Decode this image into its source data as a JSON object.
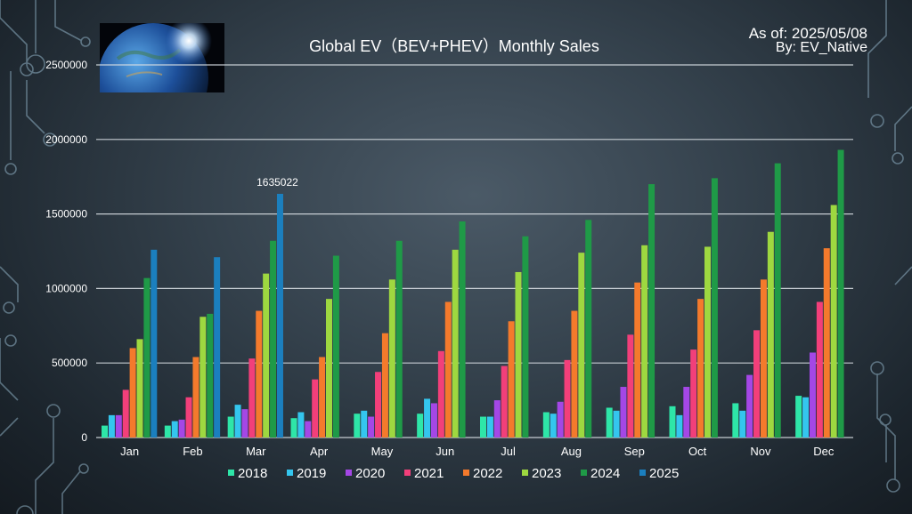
{
  "header": {
    "title": "Global EV（BEV+PHEV）Monthly Sales",
    "as_of": "As of: 2025/05/08",
    "by": "By: EV_Native"
  },
  "colors": {
    "2018": "#2ee6a8",
    "2019": "#34c6ee",
    "2020": "#a447e6",
    "2021": "#f23f7a",
    "2022": "#f47a2c",
    "2023": "#9ed840",
    "2024": "#1f9a47",
    "2025": "#1b7fbe"
  },
  "chart_data": {
    "type": "bar",
    "title": "Global EV（BEV+PHEV）Monthly Sales",
    "xlabel": "",
    "ylabel": "",
    "ylim": [
      0,
      2500000
    ],
    "yticks": [
      0,
      500000,
      1000000,
      1500000,
      2000000,
      2500000
    ],
    "ytick_labels": [
      "0",
      "500000",
      "1000000",
      "1500000",
      "2000000",
      "2500000"
    ],
    "grid": true,
    "legend_position": "bottom",
    "categories": [
      "Jan",
      "Feb",
      "Mar",
      "Apr",
      "May",
      "Jun",
      "Jul",
      "Aug",
      "Sep",
      "Oct",
      "Nov",
      "Dec"
    ],
    "series": [
      {
        "name": "2018",
        "values": [
          80000,
          80000,
          140000,
          130000,
          160000,
          160000,
          140000,
          170000,
          200000,
          210000,
          230000,
          280000
        ]
      },
      {
        "name": "2019",
        "values": [
          150000,
          110000,
          220000,
          170000,
          180000,
          260000,
          140000,
          160000,
          180000,
          150000,
          180000,
          270000
        ]
      },
      {
        "name": "2020",
        "values": [
          150000,
          120000,
          190000,
          110000,
          140000,
          230000,
          250000,
          240000,
          340000,
          340000,
          420000,
          570000
        ]
      },
      {
        "name": "2021",
        "values": [
          320000,
          270000,
          530000,
          390000,
          440000,
          580000,
          480000,
          520000,
          690000,
          590000,
          720000,
          910000
        ]
      },
      {
        "name": "2022",
        "values": [
          600000,
          540000,
          850000,
          540000,
          700000,
          910000,
          780000,
          850000,
          1040000,
          930000,
          1060000,
          1270000
        ]
      },
      {
        "name": "2023",
        "values": [
          660000,
          810000,
          1100000,
          930000,
          1060000,
          1260000,
          1110000,
          1240000,
          1290000,
          1280000,
          1380000,
          1560000
        ]
      },
      {
        "name": "2024",
        "values": [
          1070000,
          830000,
          1320000,
          1220000,
          1320000,
          1450000,
          1350000,
          1460000,
          1700000,
          1740000,
          1840000,
          1930000
        ]
      },
      {
        "name": "2025",
        "values": [
          1260000,
          1210000,
          1635022,
          null,
          null,
          null,
          null,
          null,
          null,
          null,
          null,
          null
        ]
      }
    ],
    "annotations": [
      {
        "category": "Mar",
        "series": "2025",
        "text": "1635022"
      }
    ]
  }
}
